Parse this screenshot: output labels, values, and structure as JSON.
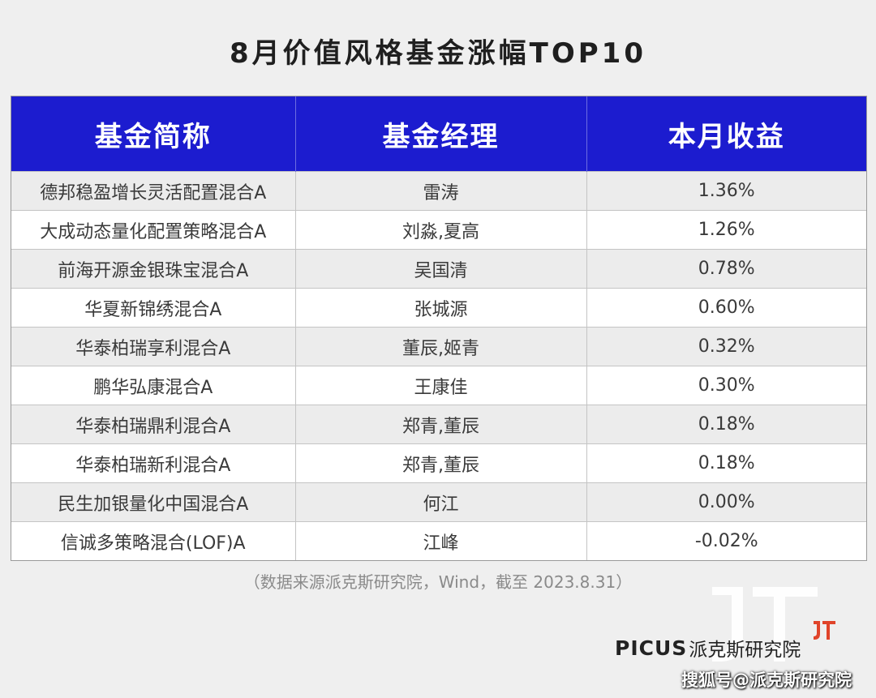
{
  "title": "8月价值风格基金涨幅TOP10",
  "table": {
    "headers": [
      "基金简称",
      "基金经理",
      "本月收益"
    ],
    "rows": [
      [
        "德邦稳盈增长灵活配置混合A",
        "雷涛",
        "1.36%"
      ],
      [
        "大成动态量化配置策略混合A",
        "刘淼,夏高",
        "1.26%"
      ],
      [
        "前海开源金银珠宝混合A",
        "吴国清",
        "0.78%"
      ],
      [
        "华夏新锦绣混合A",
        "张城源",
        "0.60%"
      ],
      [
        "华泰柏瑞享利混合A",
        "董辰,姬青",
        "0.32%"
      ],
      [
        "鹏华弘康混合A",
        "王康佳",
        "0.30%"
      ],
      [
        "华泰柏瑞鼎利混合A",
        "郑青,董辰",
        "0.18%"
      ],
      [
        "华泰柏瑞新利混合A",
        "郑青,董辰",
        "0.18%"
      ],
      [
        "民生加银量化中国混合A",
        "何江",
        "0.00%"
      ],
      [
        "信诚多策略混合(LOF)A",
        "江峰",
        "-0.02%"
      ]
    ]
  },
  "source": "（数据来源派克斯研究院，Wind，截至 2023.8.31）",
  "brand": {
    "latin": "PICUS",
    "cn": "派克斯研究院"
  },
  "watermark": "搜狐号@派克斯研究院",
  "colors": {
    "header_bg": "#1c1ccf",
    "brand_accent": "#e0442a"
  },
  "icons": [
    "jp-watermark-logo",
    "picus-mark-icon"
  ]
}
